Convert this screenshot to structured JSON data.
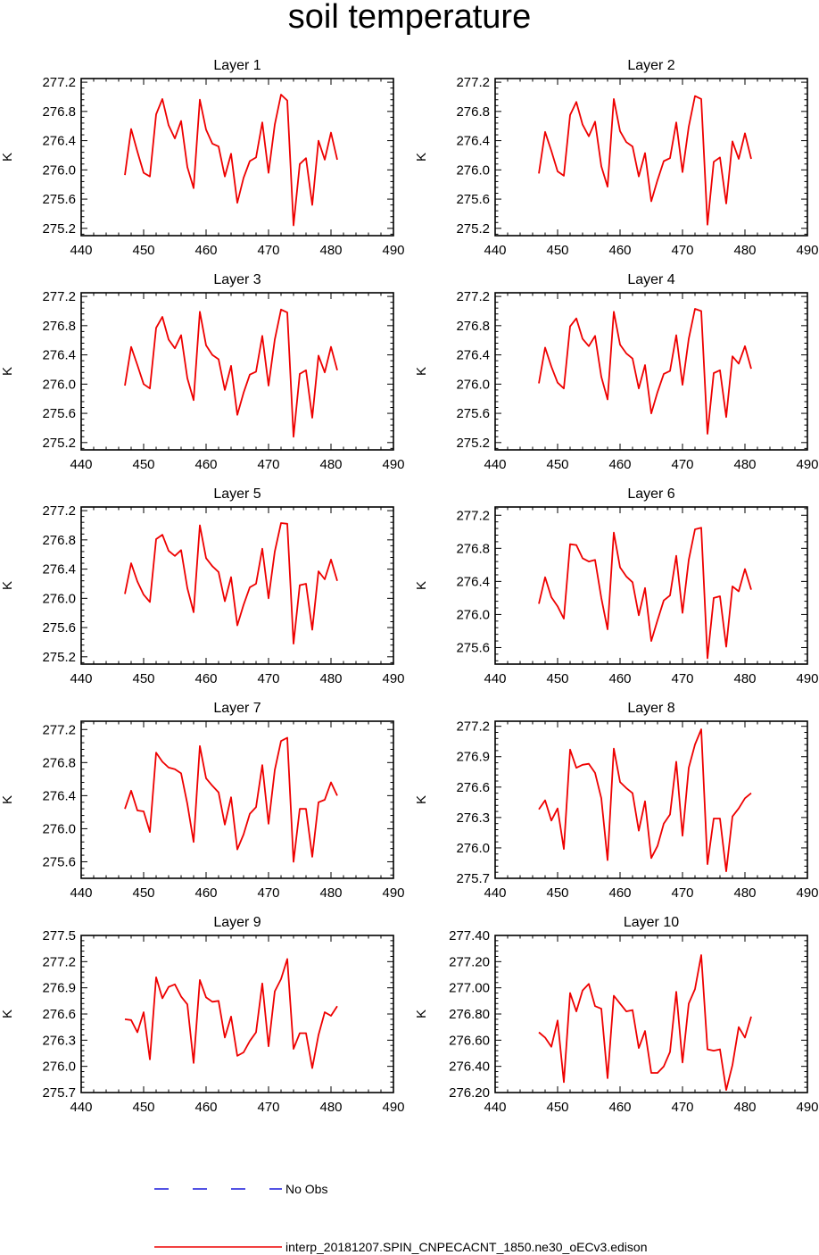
{
  "title": "soil temperature",
  "chart_data": [
    {
      "type": "line",
      "title": "Layer 1",
      "ylabel": "K",
      "xlim": [
        440,
        490
      ],
      "ylim": [
        275.1,
        277.25
      ],
      "xticks": [
        440,
        450,
        460,
        470,
        480,
        490
      ],
      "yticks": [
        275.2,
        275.6,
        276.0,
        276.4,
        276.8,
        277.2
      ],
      "ytick_labels": [
        "275.2",
        "275.6",
        "276.0",
        "276.4",
        "276.8",
        "277.2"
      ],
      "x": [
        447,
        448,
        449,
        450,
        451,
        452,
        453,
        454,
        455,
        456,
        457,
        458,
        459,
        460,
        461,
        462,
        463,
        464,
        465,
        466,
        467,
        468,
        469,
        470,
        471,
        472,
        473,
        474,
        475,
        476,
        477,
        478,
        479,
        480,
        481
      ],
      "values": [
        275.93,
        276.56,
        276.25,
        275.96,
        275.91,
        276.76,
        276.97,
        276.61,
        276.43,
        276.67,
        276.04,
        275.75,
        276.96,
        276.55,
        276.36,
        276.32,
        275.91,
        276.22,
        275.55,
        275.89,
        276.12,
        276.17,
        276.65,
        275.96,
        276.62,
        277.03,
        276.95,
        275.24,
        276.08,
        276.16,
        275.52,
        276.4,
        276.14,
        276.51,
        276.14
      ]
    },
    {
      "type": "line",
      "title": "Layer 2",
      "ylabel": "K",
      "xlim": [
        440,
        490
      ],
      "ylim": [
        275.1,
        277.25
      ],
      "xticks": [
        440,
        450,
        460,
        470,
        480,
        490
      ],
      "yticks": [
        275.2,
        275.6,
        276.0,
        276.4,
        276.8,
        277.2
      ],
      "ytick_labels": [
        "275.2",
        "275.6",
        "276.0",
        "276.4",
        "276.8",
        "277.2"
      ],
      "x": [
        447,
        448,
        449,
        450,
        451,
        452,
        453,
        454,
        455,
        456,
        457,
        458,
        459,
        460,
        461,
        462,
        463,
        464,
        465,
        466,
        467,
        468,
        469,
        470,
        471,
        472,
        473,
        474,
        475,
        476,
        477,
        478,
        479,
        480,
        481
      ],
      "values": [
        275.95,
        276.52,
        276.26,
        275.98,
        275.92,
        276.75,
        276.93,
        276.62,
        276.46,
        276.66,
        276.05,
        275.77,
        276.97,
        276.53,
        276.38,
        276.32,
        275.91,
        276.23,
        275.57,
        275.86,
        276.12,
        276.16,
        276.65,
        275.97,
        276.59,
        277.01,
        276.97,
        275.25,
        276.11,
        276.17,
        275.54,
        276.39,
        276.15,
        276.5,
        276.15
      ]
    },
    {
      "type": "line",
      "title": "Layer 3",
      "ylabel": "K",
      "xlim": [
        440,
        490
      ],
      "ylim": [
        275.1,
        277.25
      ],
      "xticks": [
        440,
        450,
        460,
        470,
        480,
        490
      ],
      "yticks": [
        275.2,
        275.6,
        276.0,
        276.4,
        276.8,
        277.2
      ],
      "ytick_labels": [
        "275.2",
        "275.6",
        "276.0",
        "276.4",
        "276.8",
        "277.2"
      ],
      "x": [
        447,
        448,
        449,
        450,
        451,
        452,
        453,
        454,
        455,
        456,
        457,
        458,
        459,
        460,
        461,
        462,
        463,
        464,
        465,
        466,
        467,
        468,
        469,
        470,
        471,
        472,
        473,
        474,
        475,
        476,
        477,
        478,
        479,
        480,
        481
      ],
      "values": [
        275.98,
        276.51,
        276.26,
        276.0,
        275.94,
        276.77,
        276.92,
        276.61,
        276.49,
        276.67,
        276.08,
        275.78,
        276.99,
        276.53,
        276.4,
        276.34,
        275.92,
        276.25,
        275.58,
        275.88,
        276.13,
        276.17,
        276.66,
        275.98,
        276.61,
        277.02,
        276.98,
        275.28,
        276.14,
        276.19,
        275.54,
        276.39,
        276.16,
        276.51,
        276.19
      ]
    },
    {
      "type": "line",
      "title": "Layer 4",
      "ylabel": "K",
      "xlim": [
        440,
        490
      ],
      "ylim": [
        275.1,
        277.25
      ],
      "xticks": [
        440,
        450,
        460,
        470,
        480,
        490
      ],
      "yticks": [
        275.2,
        275.6,
        276.0,
        276.4,
        276.8,
        277.2
      ],
      "ytick_labels": [
        "275.2",
        "275.6",
        "276.0",
        "276.4",
        "276.8",
        "277.2"
      ],
      "x": [
        447,
        448,
        449,
        450,
        451,
        452,
        453,
        454,
        455,
        456,
        457,
        458,
        459,
        460,
        461,
        462,
        463,
        464,
        465,
        466,
        467,
        468,
        469,
        470,
        471,
        472,
        473,
        474,
        475,
        476,
        477,
        478,
        479,
        480,
        481
      ],
      "values": [
        276.01,
        276.5,
        276.24,
        276.02,
        275.94,
        276.79,
        276.9,
        276.62,
        276.52,
        276.66,
        276.1,
        275.79,
        276.99,
        276.54,
        276.42,
        276.35,
        275.94,
        276.26,
        275.6,
        275.89,
        276.14,
        276.18,
        276.67,
        275.99,
        276.62,
        277.03,
        277.0,
        275.32,
        276.15,
        276.19,
        275.55,
        276.38,
        276.28,
        276.52,
        276.21
      ]
    },
    {
      "type": "line",
      "title": "Layer 5",
      "ylabel": "K",
      "xlim": [
        440,
        490
      ],
      "ylim": [
        275.1,
        277.25
      ],
      "xticks": [
        440,
        450,
        460,
        470,
        480,
        490
      ],
      "yticks": [
        275.2,
        275.6,
        276.0,
        276.4,
        276.8,
        277.2
      ],
      "ytick_labels": [
        "275.2",
        "275.6",
        "276.0",
        "276.4",
        "276.8",
        "277.2"
      ],
      "x": [
        447,
        448,
        449,
        450,
        451,
        452,
        453,
        454,
        455,
        456,
        457,
        458,
        459,
        460,
        461,
        462,
        463,
        464,
        465,
        466,
        467,
        468,
        469,
        470,
        471,
        472,
        473,
        474,
        475,
        476,
        477,
        478,
        479,
        480,
        481
      ],
      "values": [
        276.06,
        276.48,
        276.23,
        276.05,
        275.95,
        276.81,
        276.87,
        276.65,
        276.58,
        276.66,
        276.14,
        275.81,
        277.0,
        276.55,
        276.44,
        276.36,
        275.96,
        276.29,
        275.63,
        275.91,
        276.15,
        276.2,
        276.68,
        276.0,
        276.64,
        277.03,
        277.02,
        275.38,
        276.18,
        276.2,
        275.57,
        276.37,
        276.26,
        276.53,
        276.24
      ]
    },
    {
      "type": "line",
      "title": "Layer 6",
      "ylabel": "K",
      "xlim": [
        440,
        490
      ],
      "ylim": [
        275.4,
        277.3
      ],
      "xticks": [
        440,
        450,
        460,
        470,
        480,
        490
      ],
      "yticks": [
        275.6,
        276.0,
        276.4,
        276.8,
        277.2
      ],
      "ytick_labels": [
        "275.6",
        "276.0",
        "276.4",
        "276.8",
        "277.2"
      ],
      "x": [
        447,
        448,
        449,
        450,
        451,
        452,
        453,
        454,
        455,
        456,
        457,
        458,
        459,
        460,
        461,
        462,
        463,
        464,
        465,
        466,
        467,
        468,
        469,
        470,
        471,
        472,
        473,
        474,
        475,
        476,
        477,
        478,
        479,
        480,
        481
      ],
      "values": [
        276.13,
        276.45,
        276.21,
        276.1,
        275.95,
        276.85,
        276.84,
        276.68,
        276.64,
        276.66,
        276.2,
        275.82,
        276.99,
        276.57,
        276.46,
        276.39,
        275.99,
        276.32,
        275.68,
        275.93,
        276.17,
        276.23,
        276.71,
        276.02,
        276.66,
        277.03,
        277.05,
        275.47,
        276.2,
        276.22,
        275.61,
        276.34,
        276.28,
        276.55,
        276.3
      ]
    },
    {
      "type": "line",
      "title": "Layer 7",
      "ylabel": "K",
      "xlim": [
        440,
        490
      ],
      "ylim": [
        275.4,
        277.3
      ],
      "xticks": [
        440,
        450,
        460,
        470,
        480,
        490
      ],
      "yticks": [
        275.6,
        276.0,
        276.4,
        276.8,
        277.2
      ],
      "ytick_labels": [
        "275.6",
        "276.0",
        "276.4",
        "276.8",
        "277.2"
      ],
      "x": [
        447,
        448,
        449,
        450,
        451,
        452,
        453,
        454,
        455,
        456,
        457,
        458,
        459,
        460,
        461,
        462,
        463,
        464,
        465,
        466,
        467,
        468,
        469,
        470,
        471,
        472,
        473,
        474,
        475,
        476,
        477,
        478,
        479,
        480,
        481
      ],
      "values": [
        276.24,
        276.46,
        276.22,
        276.21,
        275.96,
        276.92,
        276.81,
        276.74,
        276.72,
        276.67,
        276.3,
        275.84,
        277.0,
        276.61,
        276.52,
        276.44,
        276.05,
        276.38,
        275.75,
        275.93,
        276.18,
        276.26,
        276.77,
        276.06,
        276.71,
        277.06,
        277.1,
        275.6,
        276.24,
        276.24,
        275.66,
        276.32,
        276.35,
        276.56,
        276.4
      ]
    },
    {
      "type": "line",
      "title": "Layer 8",
      "ylabel": "K",
      "xlim": [
        440,
        490
      ],
      "ylim": [
        275.7,
        277.25
      ],
      "xticks": [
        440,
        450,
        460,
        470,
        480,
        490
      ],
      "yticks": [
        275.7,
        276.0,
        276.3,
        276.6,
        276.9,
        277.2
      ],
      "ytick_labels": [
        "275.7",
        "276.0",
        "276.3",
        "276.6",
        "276.9",
        "277.2"
      ],
      "x": [
        447,
        448,
        449,
        450,
        451,
        452,
        453,
        454,
        455,
        456,
        457,
        458,
        459,
        460,
        461,
        462,
        463,
        464,
        465,
        466,
        467,
        468,
        469,
        470,
        471,
        472,
        473,
        474,
        475,
        476,
        477,
        478,
        479,
        480,
        481
      ],
      "values": [
        276.38,
        276.47,
        276.27,
        276.39,
        275.99,
        276.97,
        276.79,
        276.82,
        276.83,
        276.74,
        276.49,
        275.88,
        276.98,
        276.65,
        276.59,
        276.54,
        276.17,
        276.46,
        275.9,
        276.02,
        276.24,
        276.33,
        276.85,
        276.12,
        276.79,
        277.02,
        277.17,
        275.84,
        276.29,
        276.29,
        275.77,
        276.31,
        276.39,
        276.49,
        276.54
      ]
    },
    {
      "type": "line",
      "title": "Layer 9",
      "ylabel": "K",
      "xlim": [
        440,
        490
      ],
      "ylim": [
        275.7,
        277.5
      ],
      "xticks": [
        440,
        450,
        460,
        470,
        480,
        490
      ],
      "yticks": [
        275.7,
        276.0,
        276.3,
        276.6,
        276.9,
        277.2,
        277.5
      ],
      "ytick_labels": [
        "275.7",
        "276.0",
        "276.3",
        "276.6",
        "276.9",
        "277.2",
        "277.5"
      ],
      "x": [
        447,
        448,
        449,
        450,
        451,
        452,
        453,
        454,
        455,
        456,
        457,
        458,
        459,
        460,
        461,
        462,
        463,
        464,
        465,
        466,
        467,
        468,
        469,
        470,
        471,
        472,
        473,
        474,
        475,
        476,
        477,
        478,
        479,
        480,
        481
      ],
      "values": [
        276.54,
        276.53,
        276.39,
        276.62,
        276.08,
        277.02,
        276.78,
        276.91,
        276.94,
        276.8,
        276.71,
        276.04,
        276.99,
        276.79,
        276.74,
        276.75,
        276.33,
        276.57,
        276.12,
        276.16,
        276.29,
        276.39,
        276.95,
        276.23,
        276.86,
        277.0,
        277.23,
        276.2,
        276.38,
        276.38,
        275.98,
        276.36,
        276.62,
        276.58,
        276.69
      ]
    },
    {
      "type": "line",
      "title": "Layer 10",
      "ylabel": "K",
      "xlim": [
        440,
        490
      ],
      "ylim": [
        276.2,
        277.4
      ],
      "xticks": [
        440,
        450,
        460,
        470,
        480,
        490
      ],
      "yticks": [
        276.2,
        276.4,
        276.6,
        276.8,
        277.0,
        277.2,
        277.4
      ],
      "ytick_labels": [
        "276.20",
        "276.40",
        "276.60",
        "276.80",
        "277.00",
        "277.20",
        "277.40"
      ],
      "x": [
        447,
        448,
        449,
        450,
        451,
        452,
        453,
        454,
        455,
        456,
        457,
        458,
        459,
        460,
        461,
        462,
        463,
        464,
        465,
        466,
        467,
        468,
        469,
        470,
        471,
        472,
        473,
        474,
        475,
        476,
        477,
        478,
        479,
        480,
        481
      ],
      "values": [
        276.66,
        276.62,
        276.55,
        276.75,
        276.28,
        276.96,
        276.82,
        276.98,
        277.03,
        276.86,
        276.84,
        276.31,
        276.94,
        276.88,
        276.82,
        276.83,
        276.54,
        276.67,
        276.35,
        276.35,
        276.4,
        276.51,
        276.97,
        276.43,
        276.88,
        276.99,
        277.25,
        276.53,
        276.52,
        276.53,
        276.22,
        276.41,
        276.7,
        276.62,
        276.78
      ]
    }
  ],
  "legend": [
    {
      "label": "No Obs",
      "color": "#1a1adc",
      "style": "dashed"
    },
    {
      "label": "interp_20181207.SPIN_CNPECACNT_1850.ne30_oECv3.edison",
      "color": "#ee0000",
      "style": "solid"
    }
  ],
  "colors": {
    "series": "#ee0000",
    "axis": "#000000"
  }
}
